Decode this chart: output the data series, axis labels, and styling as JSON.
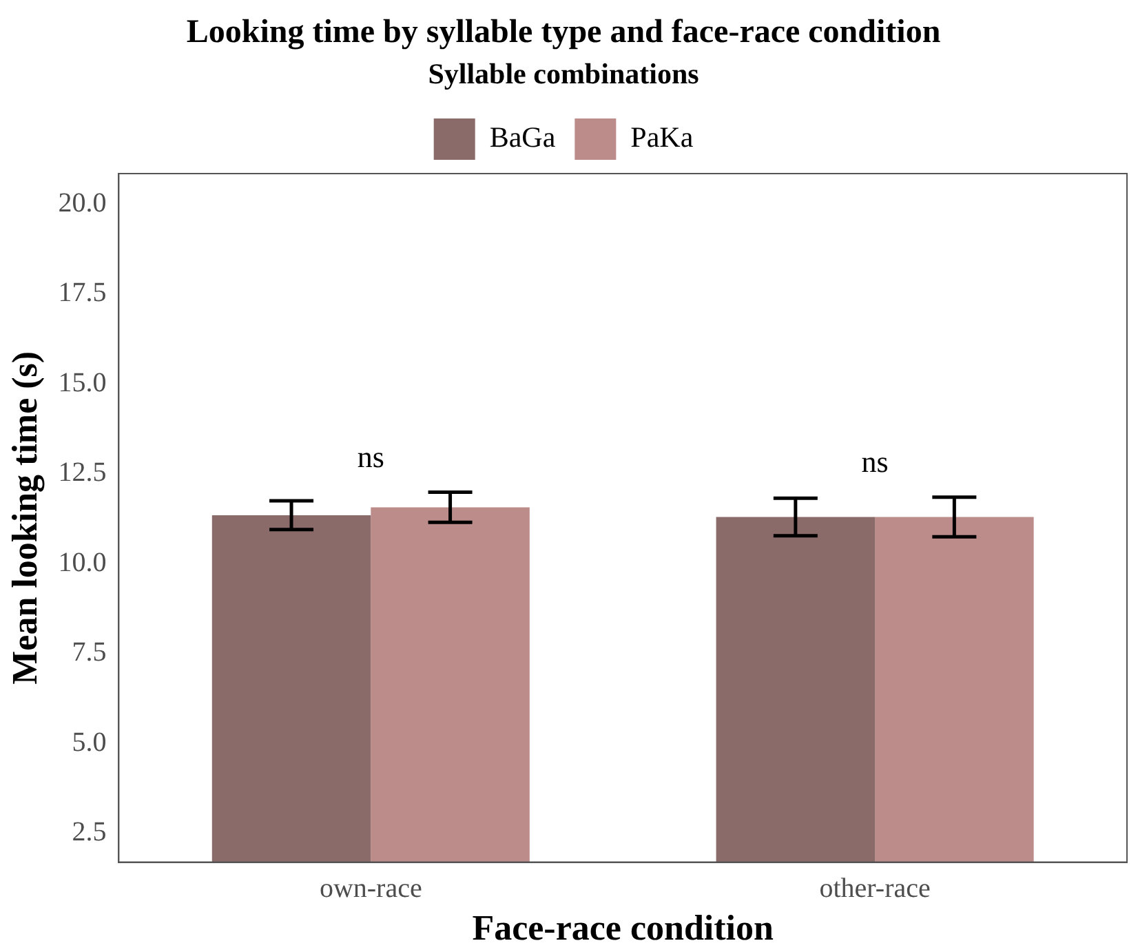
{
  "chart_data": {
    "type": "bar",
    "title": "Looking time by syllable type and face-race condition",
    "legend_title": "Syllable combinations",
    "xlabel": "Face-race condition",
    "ylabel": "Mean looking time (s)",
    "categories": [
      "own-race",
      "other-race"
    ],
    "series": [
      {
        "name": "BaGa",
        "color": "#8b6b69",
        "values": [
          11.35,
          11.3
        ],
        "errors": [
          0.4,
          0.52
        ]
      },
      {
        "name": "PaKa",
        "color": "#bb8c8a",
        "values": [
          11.57,
          11.3
        ],
        "errors": [
          0.42,
          0.55
        ]
      }
    ],
    "ylim": [
      1.7,
      20.85
    ],
    "yticks": [
      2.5,
      {
        "value": 5,
        "label": "5.0"
      },
      7.5,
      {
        "value": 10,
        "label": "10.0"
      },
      12.5,
      {
        "value": 15,
        "label": "15.0"
      },
      17.5,
      {
        "value": 20,
        "label": "20.0"
      }
    ],
    "grid": false,
    "legend": "top",
    "annotations": [
      "ns",
      "ns"
    ]
  }
}
